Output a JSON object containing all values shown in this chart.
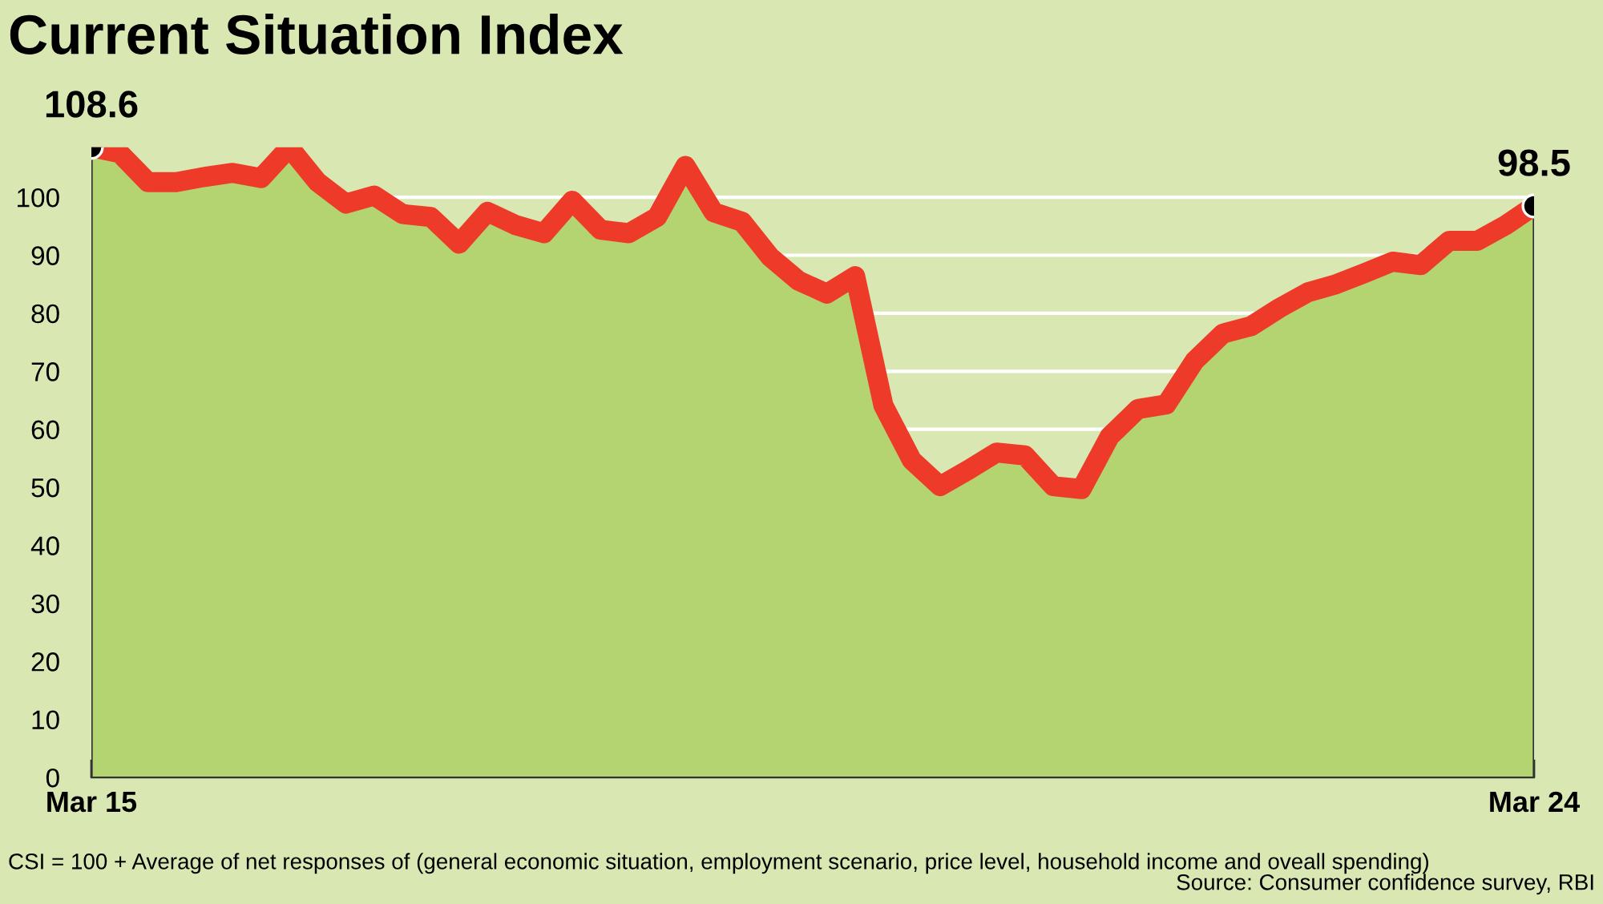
{
  "chart_data": {
    "type": "line",
    "title": "Current Situation Index",
    "categories": [
      "Mar 15",
      null,
      null,
      null,
      null,
      null,
      null,
      null,
      null,
      null,
      null,
      null,
      null,
      null,
      null,
      null,
      null,
      null,
      null,
      null,
      null,
      null,
      null,
      null,
      null,
      null,
      null,
      null,
      null,
      null,
      null,
      null,
      null,
      null,
      null,
      null,
      null,
      null,
      null,
      null,
      null,
      null,
      null,
      null,
      null,
      null,
      null,
      null,
      null,
      null,
      null,
      "Mar 24"
    ],
    "series": [
      {
        "type": "area",
        "color": "#b3d471",
        "values": [
          108.6,
          107.6,
          102.6,
          102.6,
          103.5,
          104.2,
          103.3,
          108.6,
          102.6,
          98.9,
          100.3,
          97.1,
          96.6,
          92.0,
          97.5,
          95.2,
          93.8,
          99.4,
          94.4,
          93.8,
          96.6,
          105.4,
          97.4,
          95.8,
          89.7,
          85.6,
          83.4,
          86.4,
          64.1,
          54.7,
          50.2,
          53.0,
          56.0,
          55.5,
          50.2,
          49.7,
          58.8,
          63.5,
          64.3,
          71.8,
          76.5,
          77.8,
          80.9,
          83.6,
          85.0,
          86.9,
          88.9,
          88.3,
          92.5,
          92.5,
          95.2,
          98.5
        ]
      },
      {
        "color": "#ee3a29",
        "values": [
          108.6,
          107.6,
          102.6,
          102.6,
          103.5,
          104.2,
          103.3,
          108.6,
          102.6,
          98.9,
          100.3,
          97.1,
          96.6,
          92.0,
          97.5,
          95.2,
          93.8,
          99.4,
          94.4,
          93.8,
          96.6,
          105.4,
          97.4,
          95.8,
          89.7,
          85.6,
          83.4,
          86.4,
          64.1,
          54.7,
          50.2,
          53.0,
          56.0,
          55.5,
          50.2,
          49.7,
          58.8,
          63.5,
          64.3,
          71.8,
          76.5,
          77.8,
          80.9,
          83.6,
          85.0,
          86.9,
          88.9,
          88.3,
          92.5,
          92.5,
          95.2,
          98.5
        ],
        "value_labels": [
          "108.6",
          null,
          null,
          null,
          null,
          null,
          null,
          null,
          null,
          null,
          null,
          null,
          null,
          null,
          null,
          null,
          null,
          null,
          null,
          null,
          null,
          null,
          null,
          null,
          null,
          null,
          null,
          null,
          null,
          null,
          null,
          null,
          null,
          null,
          null,
          null,
          null,
          null,
          null,
          null,
          null,
          null,
          null,
          null,
          null,
          null,
          null,
          null,
          null,
          null,
          null,
          "98.5"
        ]
      }
    ],
    "ylim": [
      0,
      108.6
    ],
    "yticks": [
      0,
      10,
      20,
      30,
      40,
      50,
      60,
      70,
      80,
      90,
      100
    ],
    "grid": "y",
    "annotations": [
      "CSI = 100 + Average of net responses of (general economic situation, employment scenario, price level, household income and oveall spending)",
      "Source: Consumer confidence survey, RBI"
    ]
  }
}
